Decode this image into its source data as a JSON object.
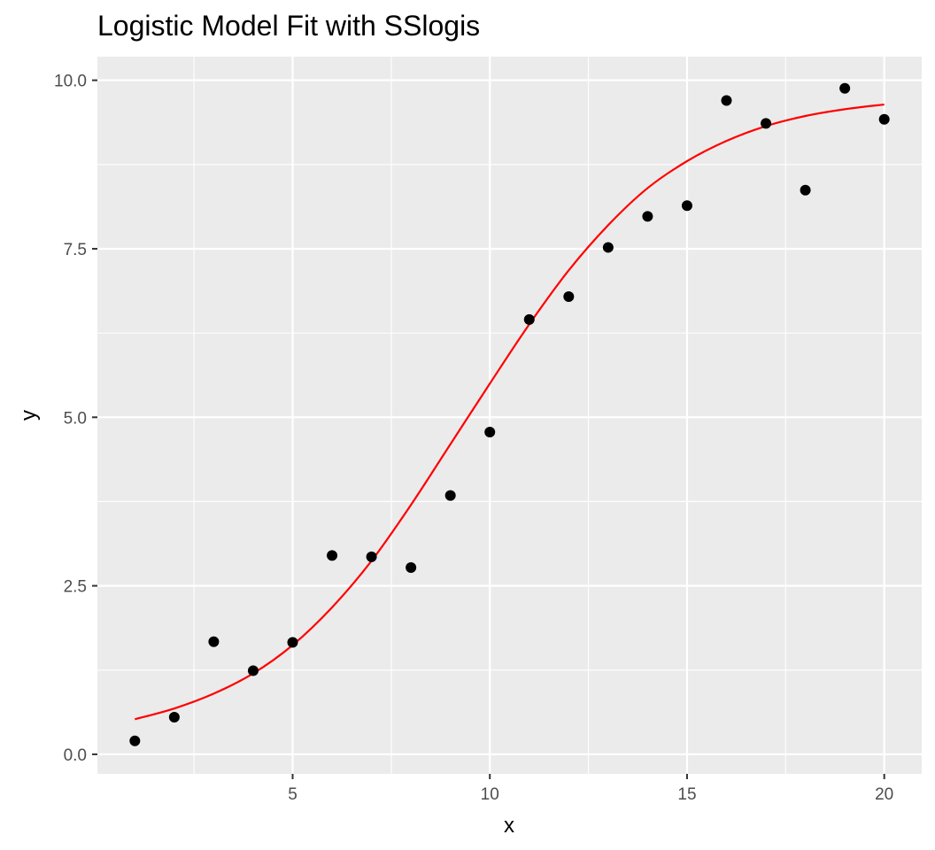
{
  "chart_data": {
    "type": "scatter",
    "title": "Logistic Model Fit with SSlogis",
    "xlabel": "x",
    "ylabel": "y",
    "xlim": [
      0.05,
      20.95
    ],
    "ylim": [
      -0.29,
      10.35
    ],
    "x_ticks": [
      5,
      10,
      15,
      20
    ],
    "y_ticks": [
      0.0,
      2.5,
      5.0,
      7.5,
      10.0
    ],
    "x_tick_labels": [
      "5",
      "10",
      "15",
      "20"
    ],
    "y_tick_labels": [
      "0.0",
      "2.5",
      "5.0",
      "7.5",
      "10.0"
    ],
    "grid": true,
    "legend": "none",
    "colors": {
      "panel": "#ebebeb",
      "grid": "#ffffff",
      "points": "#000000",
      "fit": "#ff0000"
    },
    "points": {
      "x": [
        1,
        2,
        3,
        4,
        5,
        6,
        7,
        8,
        9,
        10,
        11,
        12,
        13,
        14,
        15,
        16,
        17,
        18,
        19,
        20
      ],
      "y": [
        0.2,
        0.55,
        1.67,
        1.24,
        1.66,
        2.95,
        2.93,
        2.77,
        3.84,
        4.78,
        6.45,
        6.79,
        7.52,
        7.98,
        8.14,
        9.7,
        9.36,
        8.37,
        9.88,
        9.42
      ]
    },
    "fit": {
      "model": "SSlogis",
      "x": [
        1,
        2,
        3,
        4,
        5,
        6,
        7,
        8,
        9,
        10,
        11,
        12,
        13,
        14,
        15,
        16,
        17,
        18,
        19,
        20
      ],
      "y": [
        0.52,
        0.68,
        0.9,
        1.2,
        1.62,
        2.18,
        2.87,
        3.7,
        4.6,
        5.5,
        6.38,
        7.18,
        7.85,
        8.4,
        8.8,
        9.1,
        9.32,
        9.47,
        9.57,
        9.64
      ]
    }
  }
}
